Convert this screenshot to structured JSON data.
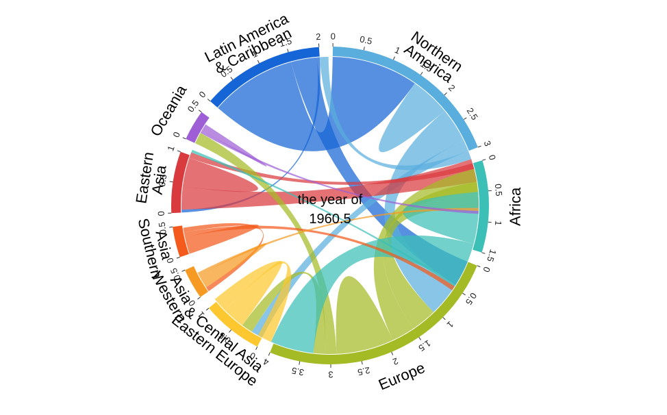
{
  "center_caption": {
    "line1": "the year of",
    "line2": "1960.5"
  },
  "sectors": [
    {
      "id": "northern_america",
      "label_lines": [
        "Northern",
        "America"
      ],
      "color": "#5aaede",
      "max": 3,
      "ticks": [
        "0",
        "0.5",
        "1",
        "1.5",
        "2",
        "2.5",
        "3"
      ]
    },
    {
      "id": "africa",
      "label_lines": [
        "Africa"
      ],
      "color": "#3cbfb7",
      "max": 1.5,
      "ticks": [
        "0",
        "0.5",
        "1",
        "1.5"
      ]
    },
    {
      "id": "europe",
      "label_lines": [
        "Europe"
      ],
      "color": "#a5bb25",
      "max": 4,
      "ticks": [
        "0",
        "0.5",
        "1",
        "1.5",
        "2",
        "2.5",
        "3",
        "3.5",
        "4"
      ]
    },
    {
      "id": "eastern_europe",
      "label_lines": [
        "Eastern Europe",
        "& Central Asia"
      ],
      "color": "#fdc72f",
      "max": 1,
      "ticks": [
        "0",
        "0.5",
        "1"
      ]
    },
    {
      "id": "western_asia",
      "label_lines": [
        "Western",
        "Asia"
      ],
      "color": "#f79a23",
      "max": 0.5,
      "ticks": [
        "0",
        "0.5"
      ]
    },
    {
      "id": "southern_asia",
      "label_lines": [
        "Southern",
        "Asia"
      ],
      "color": "#f35a1c",
      "max": 0.5,
      "ticks": [
        "0",
        "0.5"
      ]
    },
    {
      "id": "eastern_asia",
      "label_lines": [
        "Eastern",
        "Asia"
      ],
      "color": "#d93a3e",
      "max": 1,
      "ticks": [
        "0",
        "0.5",
        "1"
      ]
    },
    {
      "id": "oceania",
      "label_lines": [
        "Oceania"
      ],
      "color": "#9e5fd6",
      "max": 0.5,
      "ticks": [
        "0",
        "0.5"
      ]
    },
    {
      "id": "latin_america",
      "label_lines": [
        "Latin America",
        "& Caribbean"
      ],
      "color": "#1665d6",
      "max": 2,
      "ticks": [
        "0",
        "0.5",
        "1",
        "1.5",
        "2"
      ]
    }
  ],
  "flows": [
    {
      "from": "latin_america",
      "to": "northern_america",
      "value": 1.5
    },
    {
      "from": "latin_america",
      "to": "europe",
      "value": 0.45
    },
    {
      "from": "latin_america",
      "to": "eastern_asia",
      "value": 0.05
    },
    {
      "from": "northern_america",
      "to": "northern_america",
      "value": 0.35
    },
    {
      "from": "northern_america",
      "to": "europe",
      "value": 0.6
    },
    {
      "from": "northern_america",
      "to": "eastern_europe",
      "value": 0.2
    },
    {
      "from": "northern_america",
      "to": "latin_america",
      "value": 0.15
    },
    {
      "from": "eastern_asia",
      "to": "northern_america",
      "value": 0.4
    },
    {
      "from": "eastern_asia",
      "to": "eastern_asia",
      "value": 0.25
    },
    {
      "from": "eastern_asia",
      "to": "africa",
      "value": 0.1
    },
    {
      "from": "europe",
      "to": "northern_america",
      "value": 0.45
    },
    {
      "from": "europe",
      "to": "africa",
      "value": 0.4
    },
    {
      "from": "europe",
      "to": "europe",
      "value": 0.5
    },
    {
      "from": "europe",
      "to": "oceania",
      "value": 0.2
    },
    {
      "from": "europe",
      "to": "eastern_europe",
      "value": 0.2
    },
    {
      "from": "africa",
      "to": "africa",
      "value": 0.45
    },
    {
      "from": "africa",
      "to": "europe",
      "value": 0.75
    },
    {
      "from": "africa",
      "to": "eastern_asia",
      "value": 0.05
    },
    {
      "from": "southern_asia",
      "to": "southern_asia",
      "value": 0.15
    },
    {
      "from": "southern_asia",
      "to": "africa",
      "value": 0.08
    },
    {
      "from": "southern_asia",
      "to": "western_asia",
      "value": 0.08
    },
    {
      "from": "western_asia",
      "to": "western_asia",
      "value": 0.12
    },
    {
      "from": "western_asia",
      "to": "northern_america",
      "value": 0.05
    },
    {
      "from": "eastern_europe",
      "to": "eastern_europe",
      "value": 0.2
    },
    {
      "from": "eastern_europe",
      "to": "europe",
      "value": 0.25
    },
    {
      "from": "oceania",
      "to": "northern_america",
      "value": 0.05
    },
    {
      "from": "oceania",
      "to": "oceania",
      "value": 0.06
    }
  ]
}
